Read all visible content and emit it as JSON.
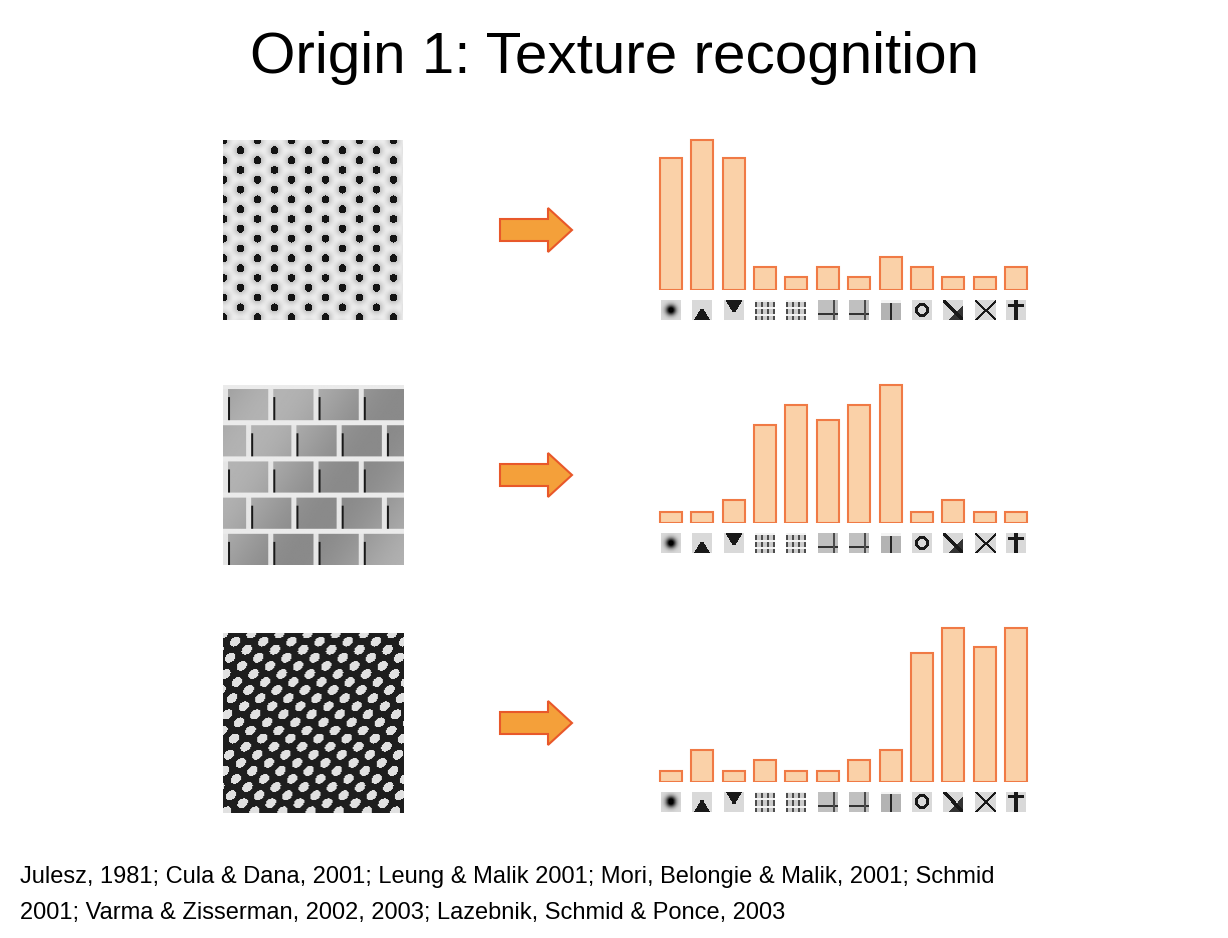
{
  "title": "Origin 1: Texture recognition",
  "footnote": [
    "Julesz, 1981; Cula & Dana, 2001; Leung & Malik 2001; Mori, Belongie & Malik, 2001; Schmid",
    "2001; Varma & Zisserman, 2002, 2003; Lazebnik, Schmid & Ponce, 2003"
  ],
  "chart_data": [
    {
      "type": "bar",
      "color": "#fad1a8",
      "tick_labels": false,
      "categories": [
        null,
        null,
        null,
        null,
        null,
        null,
        null,
        null,
        null,
        null,
        null,
        null
      ],
      "values": [
        132,
        150,
        132,
        23,
        13,
        23,
        13,
        33,
        23,
        13,
        13,
        23
      ]
    },
    {
      "type": "bar",
      "color": "#fad1a8",
      "tick_labels": false,
      "categories": [
        null,
        null,
        null,
        null,
        null,
        null,
        null,
        null,
        null,
        null,
        null,
        null
      ],
      "values": [
        11,
        11,
        23,
        98,
        118,
        103,
        118,
        138,
        11,
        23,
        11,
        11
      ]
    },
    {
      "type": "bar",
      "color": "#fad1a8",
      "tick_labels": false,
      "categories": [
        null,
        null,
        null,
        null,
        null,
        null,
        null,
        null,
        null,
        null,
        null,
        null
      ],
      "values": [
        11,
        32,
        11,
        22,
        11,
        11,
        22,
        32,
        129,
        154,
        135,
        154
      ]
    }
  ]
}
